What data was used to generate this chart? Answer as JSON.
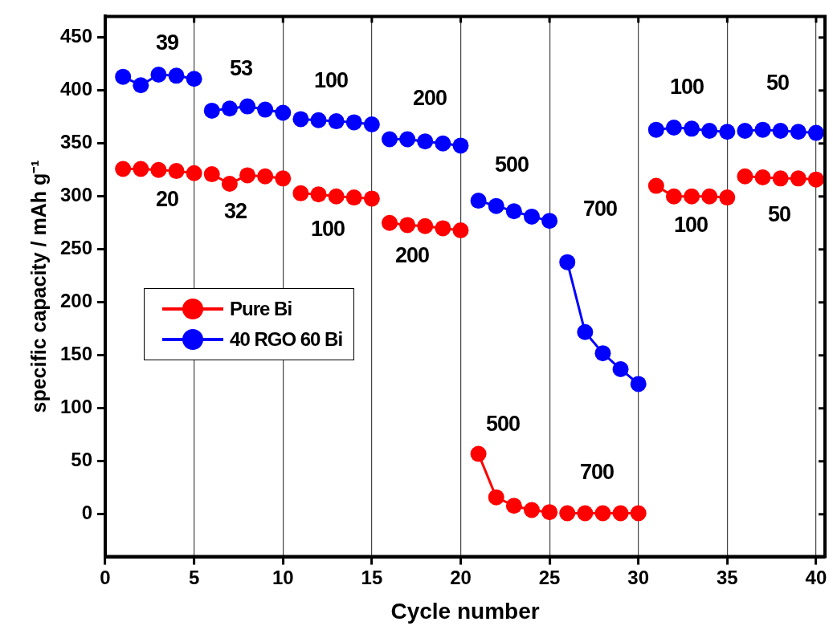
{
  "chart_data": {
    "type": "line",
    "xlabel": "Cycle number",
    "ylabel": "specific capacity / mAh g⁻¹",
    "x": [
      1,
      2,
      3,
      4,
      5,
      6,
      7,
      8,
      9,
      10,
      11,
      12,
      13,
      14,
      15,
      16,
      17,
      18,
      19,
      20,
      21,
      22,
      23,
      24,
      25,
      26,
      27,
      28,
      29,
      30,
      31,
      32,
      33,
      34,
      35,
      36,
      37,
      38,
      39,
      40
    ],
    "series": [
      {
        "name": "Pure Bi",
        "color": "#ff0000",
        "values": [
          326,
          326,
          325,
          324,
          322,
          null,
          null,
          null,
          null,
          null,
          null,
          null,
          null,
          null,
          null,
          null,
          null,
          null,
          null,
          null,
          null,
          null,
          null,
          null,
          null,
          null,
          null,
          null,
          null,
          null,
          null,
          null,
          null,
          null,
          null,
          null,
          null,
          null,
          null,
          null
        ]
      },
      {
        "name": "40 RGO 60 Bi",
        "color": "#0000ff",
        "values": [
          413,
          405,
          415,
          414,
          411,
          null,
          null,
          null,
          null,
          null,
          null,
          null,
          null,
          null,
          null,
          null,
          null,
          null,
          null,
          null,
          null,
          null,
          null,
          null,
          null,
          null,
          null,
          null,
          null,
          null,
          null,
          null,
          null,
          null,
          null,
          null,
          null,
          null,
          null,
          null
        ]
      },
      {
        "color": "#ff0000",
        "values": [
          null,
          null,
          null,
          null,
          null,
          321,
          312,
          320,
          319,
          317,
          null,
          null,
          null,
          null,
          null,
          null,
          null,
          null,
          null,
          null,
          null,
          null,
          null,
          null,
          null,
          null,
          null,
          null,
          null,
          null,
          null,
          null,
          null,
          null,
          null,
          null,
          null,
          null,
          null,
          null
        ]
      },
      {
        "color": "#0000ff",
        "values": [
          null,
          null,
          null,
          null,
          null,
          381,
          383,
          385,
          382,
          379,
          null,
          null,
          null,
          null,
          null,
          null,
          null,
          null,
          null,
          null,
          null,
          null,
          null,
          null,
          null,
          null,
          null,
          null,
          null,
          null,
          null,
          null,
          null,
          null,
          null,
          null,
          null,
          null,
          null,
          null
        ]
      },
      {
        "color": "#ff0000",
        "values": [
          null,
          null,
          null,
          null,
          null,
          null,
          null,
          null,
          null,
          null,
          303,
          302,
          300,
          299,
          298,
          null,
          null,
          null,
          null,
          null,
          null,
          null,
          null,
          null,
          null,
          null,
          null,
          null,
          null,
          null,
          null,
          null,
          null,
          null,
          null,
          null,
          null,
          null,
          null,
          null
        ]
      },
      {
        "color": "#0000ff",
        "values": [
          null,
          null,
          null,
          null,
          null,
          null,
          null,
          null,
          null,
          null,
          373,
          372,
          371,
          370,
          368,
          null,
          null,
          null,
          null,
          null,
          null,
          null,
          null,
          null,
          null,
          null,
          null,
          null,
          null,
          null,
          null,
          null,
          null,
          null,
          null,
          null,
          null,
          null,
          null,
          null
        ]
      },
      {
        "color": "#ff0000",
        "values": [
          null,
          null,
          null,
          null,
          null,
          null,
          null,
          null,
          null,
          null,
          null,
          null,
          null,
          null,
          null,
          275,
          273,
          272,
          270,
          268,
          null,
          null,
          null,
          null,
          null,
          null,
          null,
          null,
          null,
          null,
          null,
          null,
          null,
          null,
          null,
          null,
          null,
          null,
          null,
          null
        ]
      },
      {
        "color": "#0000ff",
        "values": [
          null,
          null,
          null,
          null,
          null,
          null,
          null,
          null,
          null,
          null,
          null,
          null,
          null,
          null,
          null,
          354,
          354,
          352,
          350,
          348,
          null,
          null,
          null,
          null,
          null,
          null,
          null,
          null,
          null,
          null,
          null,
          null,
          null,
          null,
          null,
          null,
          null,
          null,
          null,
          null
        ]
      },
      {
        "color": "#ff0000",
        "values": [
          null,
          null,
          null,
          null,
          null,
          null,
          null,
          null,
          null,
          null,
          null,
          null,
          null,
          null,
          null,
          null,
          null,
          null,
          null,
          null,
          57,
          16,
          8,
          4,
          2,
          null,
          null,
          null,
          null,
          null,
          null,
          null,
          null,
          null,
          null,
          null,
          null,
          null,
          null,
          null
        ]
      },
      {
        "color": "#0000ff",
        "values": [
          null,
          null,
          null,
          null,
          null,
          null,
          null,
          null,
          null,
          null,
          null,
          null,
          null,
          null,
          null,
          null,
          null,
          null,
          null,
          null,
          296,
          291,
          286,
          281,
          277,
          null,
          null,
          null,
          null,
          null,
          null,
          null,
          null,
          null,
          null,
          null,
          null,
          null,
          null,
          null
        ]
      },
      {
        "color": "#ff0000",
        "values": [
          null,
          null,
          null,
          null,
          null,
          null,
          null,
          null,
          null,
          null,
          null,
          null,
          null,
          null,
          null,
          null,
          null,
          null,
          null,
          null,
          null,
          null,
          null,
          null,
          null,
          1,
          1,
          1,
          1,
          1,
          null,
          null,
          null,
          null,
          null,
          null,
          null,
          null,
          null,
          null
        ]
      },
      {
        "color": "#0000ff",
        "values": [
          null,
          null,
          null,
          null,
          null,
          null,
          null,
          null,
          null,
          null,
          null,
          null,
          null,
          null,
          null,
          null,
          null,
          null,
          null,
          null,
          null,
          null,
          null,
          null,
          null,
          238,
          172,
          152,
          137,
          123,
          null,
          null,
          null,
          null,
          null,
          null,
          null,
          null,
          null,
          null
        ]
      },
      {
        "color": "#ff0000",
        "values": [
          null,
          null,
          null,
          null,
          null,
          null,
          null,
          null,
          null,
          null,
          null,
          null,
          null,
          null,
          null,
          null,
          null,
          null,
          null,
          null,
          null,
          null,
          null,
          null,
          null,
          null,
          null,
          null,
          null,
          null,
          310,
          300,
          300,
          300,
          299,
          null,
          null,
          null,
          null,
          null
        ]
      },
      {
        "color": "#0000ff",
        "values": [
          null,
          null,
          null,
          null,
          null,
          null,
          null,
          null,
          null,
          null,
          null,
          null,
          null,
          null,
          null,
          null,
          null,
          null,
          null,
          null,
          null,
          null,
          null,
          null,
          null,
          null,
          null,
          null,
          null,
          null,
          363,
          365,
          364,
          362,
          361,
          null,
          null,
          null,
          null,
          null
        ]
      },
      {
        "color": "#ff0000",
        "values": [
          null,
          null,
          null,
          null,
          null,
          null,
          null,
          null,
          null,
          null,
          null,
          null,
          null,
          null,
          null,
          null,
          null,
          null,
          null,
          null,
          null,
          null,
          null,
          null,
          null,
          null,
          null,
          null,
          null,
          null,
          null,
          null,
          null,
          null,
          null,
          319,
          318,
          317,
          317,
          316
        ]
      },
      {
        "color": "#0000ff",
        "values": [
          null,
          null,
          null,
          null,
          null,
          null,
          null,
          null,
          null,
          null,
          null,
          null,
          null,
          null,
          null,
          null,
          null,
          null,
          null,
          null,
          null,
          null,
          null,
          null,
          null,
          null,
          null,
          null,
          null,
          null,
          null,
          null,
          null,
          null,
          null,
          362,
          363,
          362,
          361,
          360
        ]
      }
    ],
    "xlim": [
      0,
      40.5
    ],
    "xticks": [
      0,
      5,
      10,
      15,
      20,
      25,
      30,
      35,
      40
    ],
    "ylim": [
      -40,
      470
    ],
    "yticks": [
      0,
      50,
      100,
      150,
      200,
      250,
      300,
      350,
      400,
      450
    ],
    "grid": "x",
    "legend": "center left",
    "marker": "circle",
    "line_style": "solid",
    "annotations": [
      "39",
      "53",
      "100",
      "200",
      "500",
      "700",
      "100",
      "50",
      "20",
      "32",
      "100",
      "200",
      "500",
      "700",
      "100",
      "50"
    ]
  }
}
